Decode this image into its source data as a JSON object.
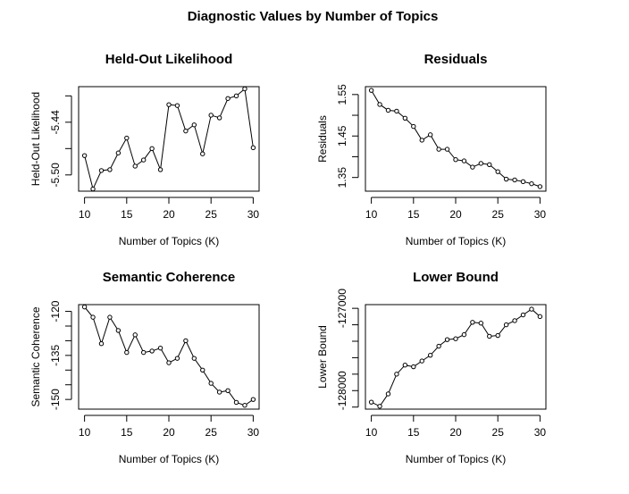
{
  "figure": {
    "title": "Diagnostic Values by Number of Topics"
  },
  "chart_data": [
    {
      "type": "line",
      "title": "Held-Out Likelihood",
      "xlabel": "Number of Topics (K)",
      "ylabel": "Held-Out Likelihood",
      "x": [
        10,
        11,
        12,
        13,
        14,
        15,
        16,
        17,
        18,
        19,
        20,
        21,
        22,
        23,
        24,
        25,
        26,
        27,
        28,
        29,
        30
      ],
      "values": [
        -5.478,
        -5.516,
        -5.495,
        -5.494,
        -5.475,
        -5.458,
        -5.49,
        -5.483,
        -5.47,
        -5.494,
        -5.42,
        -5.421,
        -5.45,
        -5.443,
        -5.476,
        -5.432,
        -5.435,
        -5.413,
        -5.41,
        -5.402,
        -5.469
      ],
      "xlim": [
        9.3,
        30.7
      ],
      "ylim": [
        -5.5185,
        -5.3995
      ],
      "xticks": [
        10,
        15,
        20,
        25,
        30
      ],
      "xtick_labels": [
        "10",
        "15",
        "20",
        "25",
        "30"
      ],
      "yticks": [
        -5.5,
        -5.44
      ],
      "ytick_labels": [
        "-5.50",
        "-5.44"
      ],
      "yticks_minor": [
        -5.53,
        -5.47,
        -5.41
      ]
    },
    {
      "type": "line",
      "title": "Residuals",
      "xlabel": "Number of Topics (K)",
      "ylabel": "Residuals",
      "x": [
        10,
        11,
        12,
        13,
        14,
        15,
        16,
        17,
        18,
        19,
        20,
        21,
        22,
        23,
        24,
        25,
        26,
        27,
        28,
        29,
        30
      ],
      "values": [
        1.56,
        1.526,
        1.512,
        1.51,
        1.493,
        1.473,
        1.44,
        1.453,
        1.418,
        1.418,
        1.393,
        1.39,
        1.375,
        1.384,
        1.381,
        1.364,
        1.346,
        1.344,
        1.34,
        1.335,
        1.328
      ],
      "xlim": [
        9.3,
        30.7
      ],
      "ylim": [
        1.317,
        1.569
      ],
      "xticks": [
        10,
        15,
        20,
        25,
        30
      ],
      "xtick_labels": [
        "10",
        "15",
        "20",
        "25",
        "30"
      ],
      "yticks": [
        1.35,
        1.45,
        1.55
      ],
      "ytick_labels": [
        "1.35",
        "1.45",
        "1.55"
      ],
      "yticks_minor": [
        1.4,
        1.5
      ]
    },
    {
      "type": "line",
      "title": "Semantic Coherence",
      "xlabel": "Number of Topics (K)",
      "ylabel": "Semantic Coherence",
      "x": [
        10,
        11,
        12,
        13,
        14,
        15,
        16,
        17,
        18,
        19,
        20,
        21,
        22,
        23,
        24,
        25,
        26,
        27,
        28,
        29,
        30
      ],
      "values": [
        -118.5,
        -122.0,
        -131.0,
        -122.0,
        -126.5,
        -134.0,
        -128.0,
        -134.0,
        -133.5,
        -132.5,
        -137.5,
        -136.0,
        -130.0,
        -136.0,
        -140.0,
        -144.5,
        -147.5,
        -147.0,
        -151.0,
        -152.0,
        -150.0
      ],
      "xlim": [
        9.3,
        30.7
      ],
      "ylim": [
        -153.3,
        -117.7
      ],
      "xticks": [
        10,
        15,
        20,
        25,
        30
      ],
      "xtick_labels": [
        "10",
        "15",
        "20",
        "25",
        "30"
      ],
      "yticks": [
        -150,
        -135,
        -120
      ],
      "ytick_labels": [
        "-150",
        "-135",
        "-120"
      ],
      "yticks_minor": [
        -145,
        -140,
        -130,
        -125
      ]
    },
    {
      "type": "line",
      "title": "Lower Bound",
      "xlabel": "Number of Topics (K)",
      "ylabel": "Lower Bound",
      "x": [
        10,
        11,
        12,
        13,
        14,
        15,
        16,
        17,
        18,
        19,
        20,
        21,
        22,
        23,
        24,
        25,
        26,
        27,
        28,
        29,
        30
      ],
      "values": [
        -128140,
        -128190,
        -128040,
        -127800,
        -127690,
        -127710,
        -127640,
        -127570,
        -127460,
        -127380,
        -127370,
        -127320,
        -127170,
        -127180,
        -127340,
        -127330,
        -127200,
        -127150,
        -127080,
        -127010,
        -127100
      ],
      "xlim": [
        9.3,
        30.7
      ],
      "ylim": [
        -128225,
        -126955
      ],
      "xticks": [
        10,
        15,
        20,
        25,
        30
      ],
      "xtick_labels": [
        "10",
        "15",
        "20",
        "25",
        "30"
      ],
      "yticks": [
        -128000,
        -127000
      ],
      "ytick_labels": [
        "-128000",
        "-127000"
      ],
      "yticks_minor": [
        -128200,
        -127800,
        -127600,
        -127400,
        -127200
      ]
    }
  ]
}
